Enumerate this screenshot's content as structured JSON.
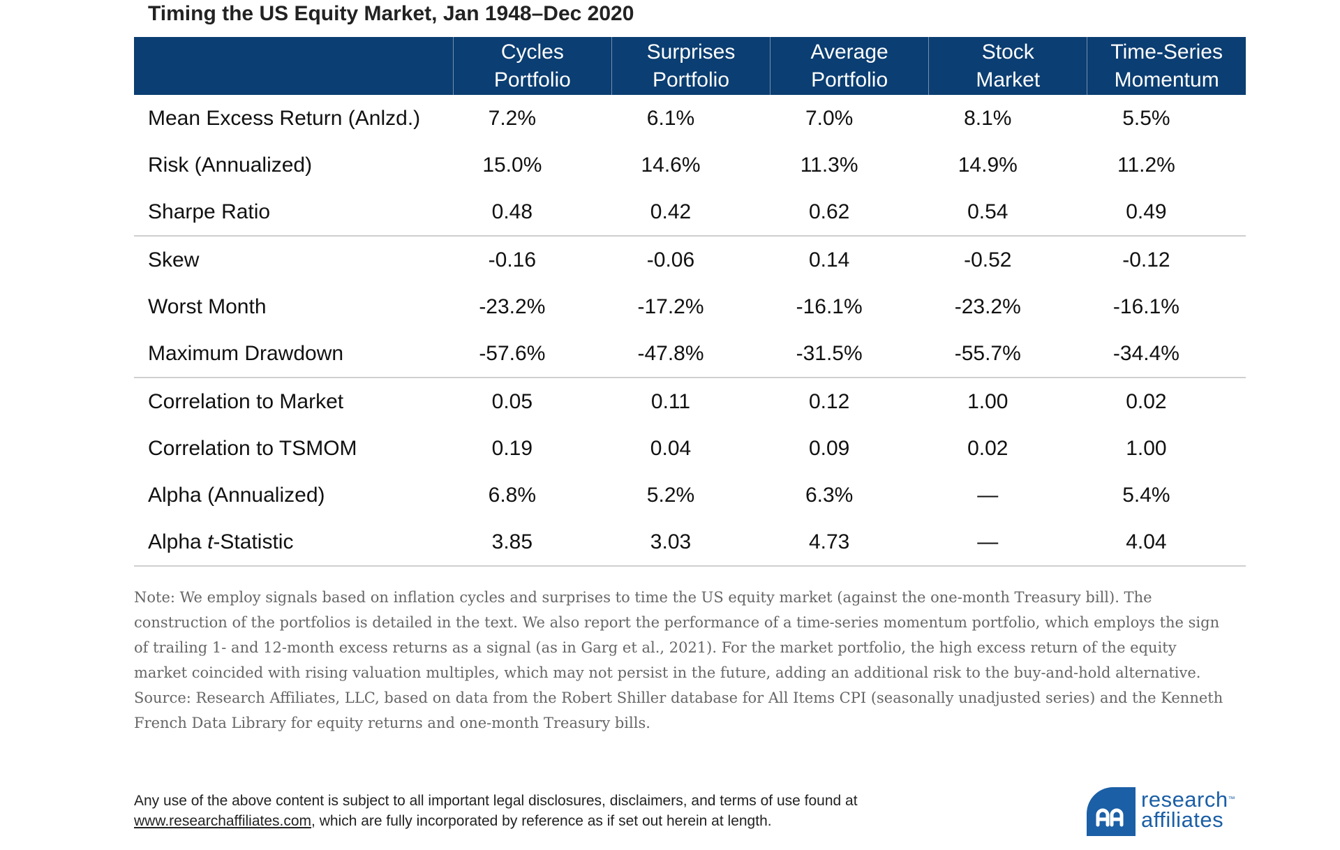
{
  "title": "Timing the US Equity Market, Jan 1948–Dec 2020",
  "table": {
    "columns": [
      {
        "line1": "Cycles",
        "line2": "Portfolio"
      },
      {
        "line1": "Surprises",
        "line2": "Portfolio"
      },
      {
        "line1": "Average",
        "line2": "Portfolio"
      },
      {
        "line1": "Stock",
        "line2": "Market"
      },
      {
        "line1": "Time-Series",
        "line2": "Momentum"
      }
    ],
    "rows": [
      {
        "label": "Mean Excess Return (Anlzd.)",
        "values": [
          "7.2%",
          "6.1%",
          "7.0%",
          "8.1%",
          "5.5%"
        ]
      },
      {
        "label": "Risk (Annualized)",
        "values": [
          "15.0%",
          "14.6%",
          "11.3%",
          "14.9%",
          "11.2%"
        ]
      },
      {
        "label": "Sharpe Ratio",
        "values": [
          "0.48",
          "0.42",
          "0.62",
          "0.54",
          "0.49"
        ]
      },
      {
        "label": "Skew",
        "values": [
          "-0.16",
          "-0.06",
          "0.14",
          "-0.52",
          "-0.12"
        ]
      },
      {
        "label": "Worst Month",
        "values": [
          "-23.2%",
          "-17.2%",
          "-16.1%",
          "-23.2%",
          "-16.1%"
        ]
      },
      {
        "label": "Maximum Drawdown",
        "values": [
          "-57.6%",
          "-47.8%",
          "-31.5%",
          "-55.7%",
          "-34.4%"
        ]
      },
      {
        "label": "Correlation to Market",
        "values": [
          "0.05",
          "0.11",
          "0.12",
          "1.00",
          "0.02"
        ]
      },
      {
        "label": "Correlation to TSMOM",
        "values": [
          "0.19",
          "0.04",
          "0.09",
          "0.02",
          "1.00"
        ]
      },
      {
        "label": "Alpha (Annualized)",
        "values": [
          "6.8%",
          "5.2%",
          "6.3%",
          "—",
          "5.4%"
        ]
      },
      {
        "label_pre": "Alpha ",
        "label_italic": "t",
        "label_post": "-Statistic",
        "values": [
          "3.85",
          "3.03",
          "4.73",
          "—",
          "4.04"
        ]
      }
    ]
  },
  "note": "Note: We employ signals based on inflation cycles and surprises to time the US equity market (against the one-month Treasury bill). The construction of the portfolios is detailed in the text. We also report the performance of a time-series momentum portfolio, which employs the sign of trailing 1- and 12-month excess returns as a signal (as in Garg et al., 2021). For the market portfolio, the high excess return of the equity market coincided with rising valuation multiples, which may not persist in the future, adding an additional risk to the buy-and-hold alternative.",
  "source": "Source: Research Affiliates, LLC, based on data from the Robert Shiller database for All Items CPI (seasonally unadjusted series) and the Kenneth French Data Library for equity returns and one-month Treasury bills.",
  "disclaimer": {
    "line1": "Any use of the above content is subject to all important legal disclosures, disclaimers, and terms of use found at",
    "link": "www.researchaffiliates.com",
    "line2_rest": ", which are fully incorporated by reference as if set out herein at length."
  },
  "logo": {
    "word1": "research",
    "tm": "™",
    "word2": "affiliates",
    "color": "#1b5fa6"
  },
  "colors": {
    "header_bg": "#0b3e72",
    "note_text": "#666666"
  }
}
